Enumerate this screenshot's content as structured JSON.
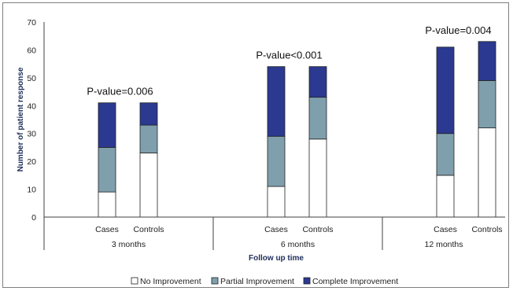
{
  "chart_data": {
    "type": "bar",
    "stacked": true,
    "ylabel": "Number of patient response",
    "xlabel": "Follow up time",
    "ylim": [
      0,
      70
    ],
    "yticks": [
      0,
      10,
      20,
      30,
      40,
      50,
      60,
      70
    ],
    "groups": [
      {
        "label": "3 months",
        "annotation": "P-value=0.006",
        "bars": [
          {
            "label": "Cases",
            "values": [
              9,
              16,
              16
            ]
          },
          {
            "label": "Controls",
            "values": [
              23,
              10,
              8
            ]
          }
        ]
      },
      {
        "label": "6 months",
        "annotation": "P-value<0.001",
        "bars": [
          {
            "label": "Cases",
            "values": [
              11,
              18,
              25
            ]
          },
          {
            "label": "Controls",
            "values": [
              28,
              15,
              11
            ]
          }
        ]
      },
      {
        "label": "12 months",
        "annotation": "P-value=0.004",
        "bars": [
          {
            "label": "Cases",
            "values": [
              15,
              15,
              31
            ]
          },
          {
            "label": "Controls",
            "values": [
              32,
              17,
              14
            ]
          }
        ]
      }
    ],
    "series": [
      {
        "name": "No Improvement",
        "color": "#ffffff"
      },
      {
        "name": "Partial Improvement",
        "color": "#7f9fad"
      },
      {
        "name": "Complete Improvement",
        "color": "#2b3990"
      }
    ],
    "legend_position": "bottom",
    "grid": false
  }
}
